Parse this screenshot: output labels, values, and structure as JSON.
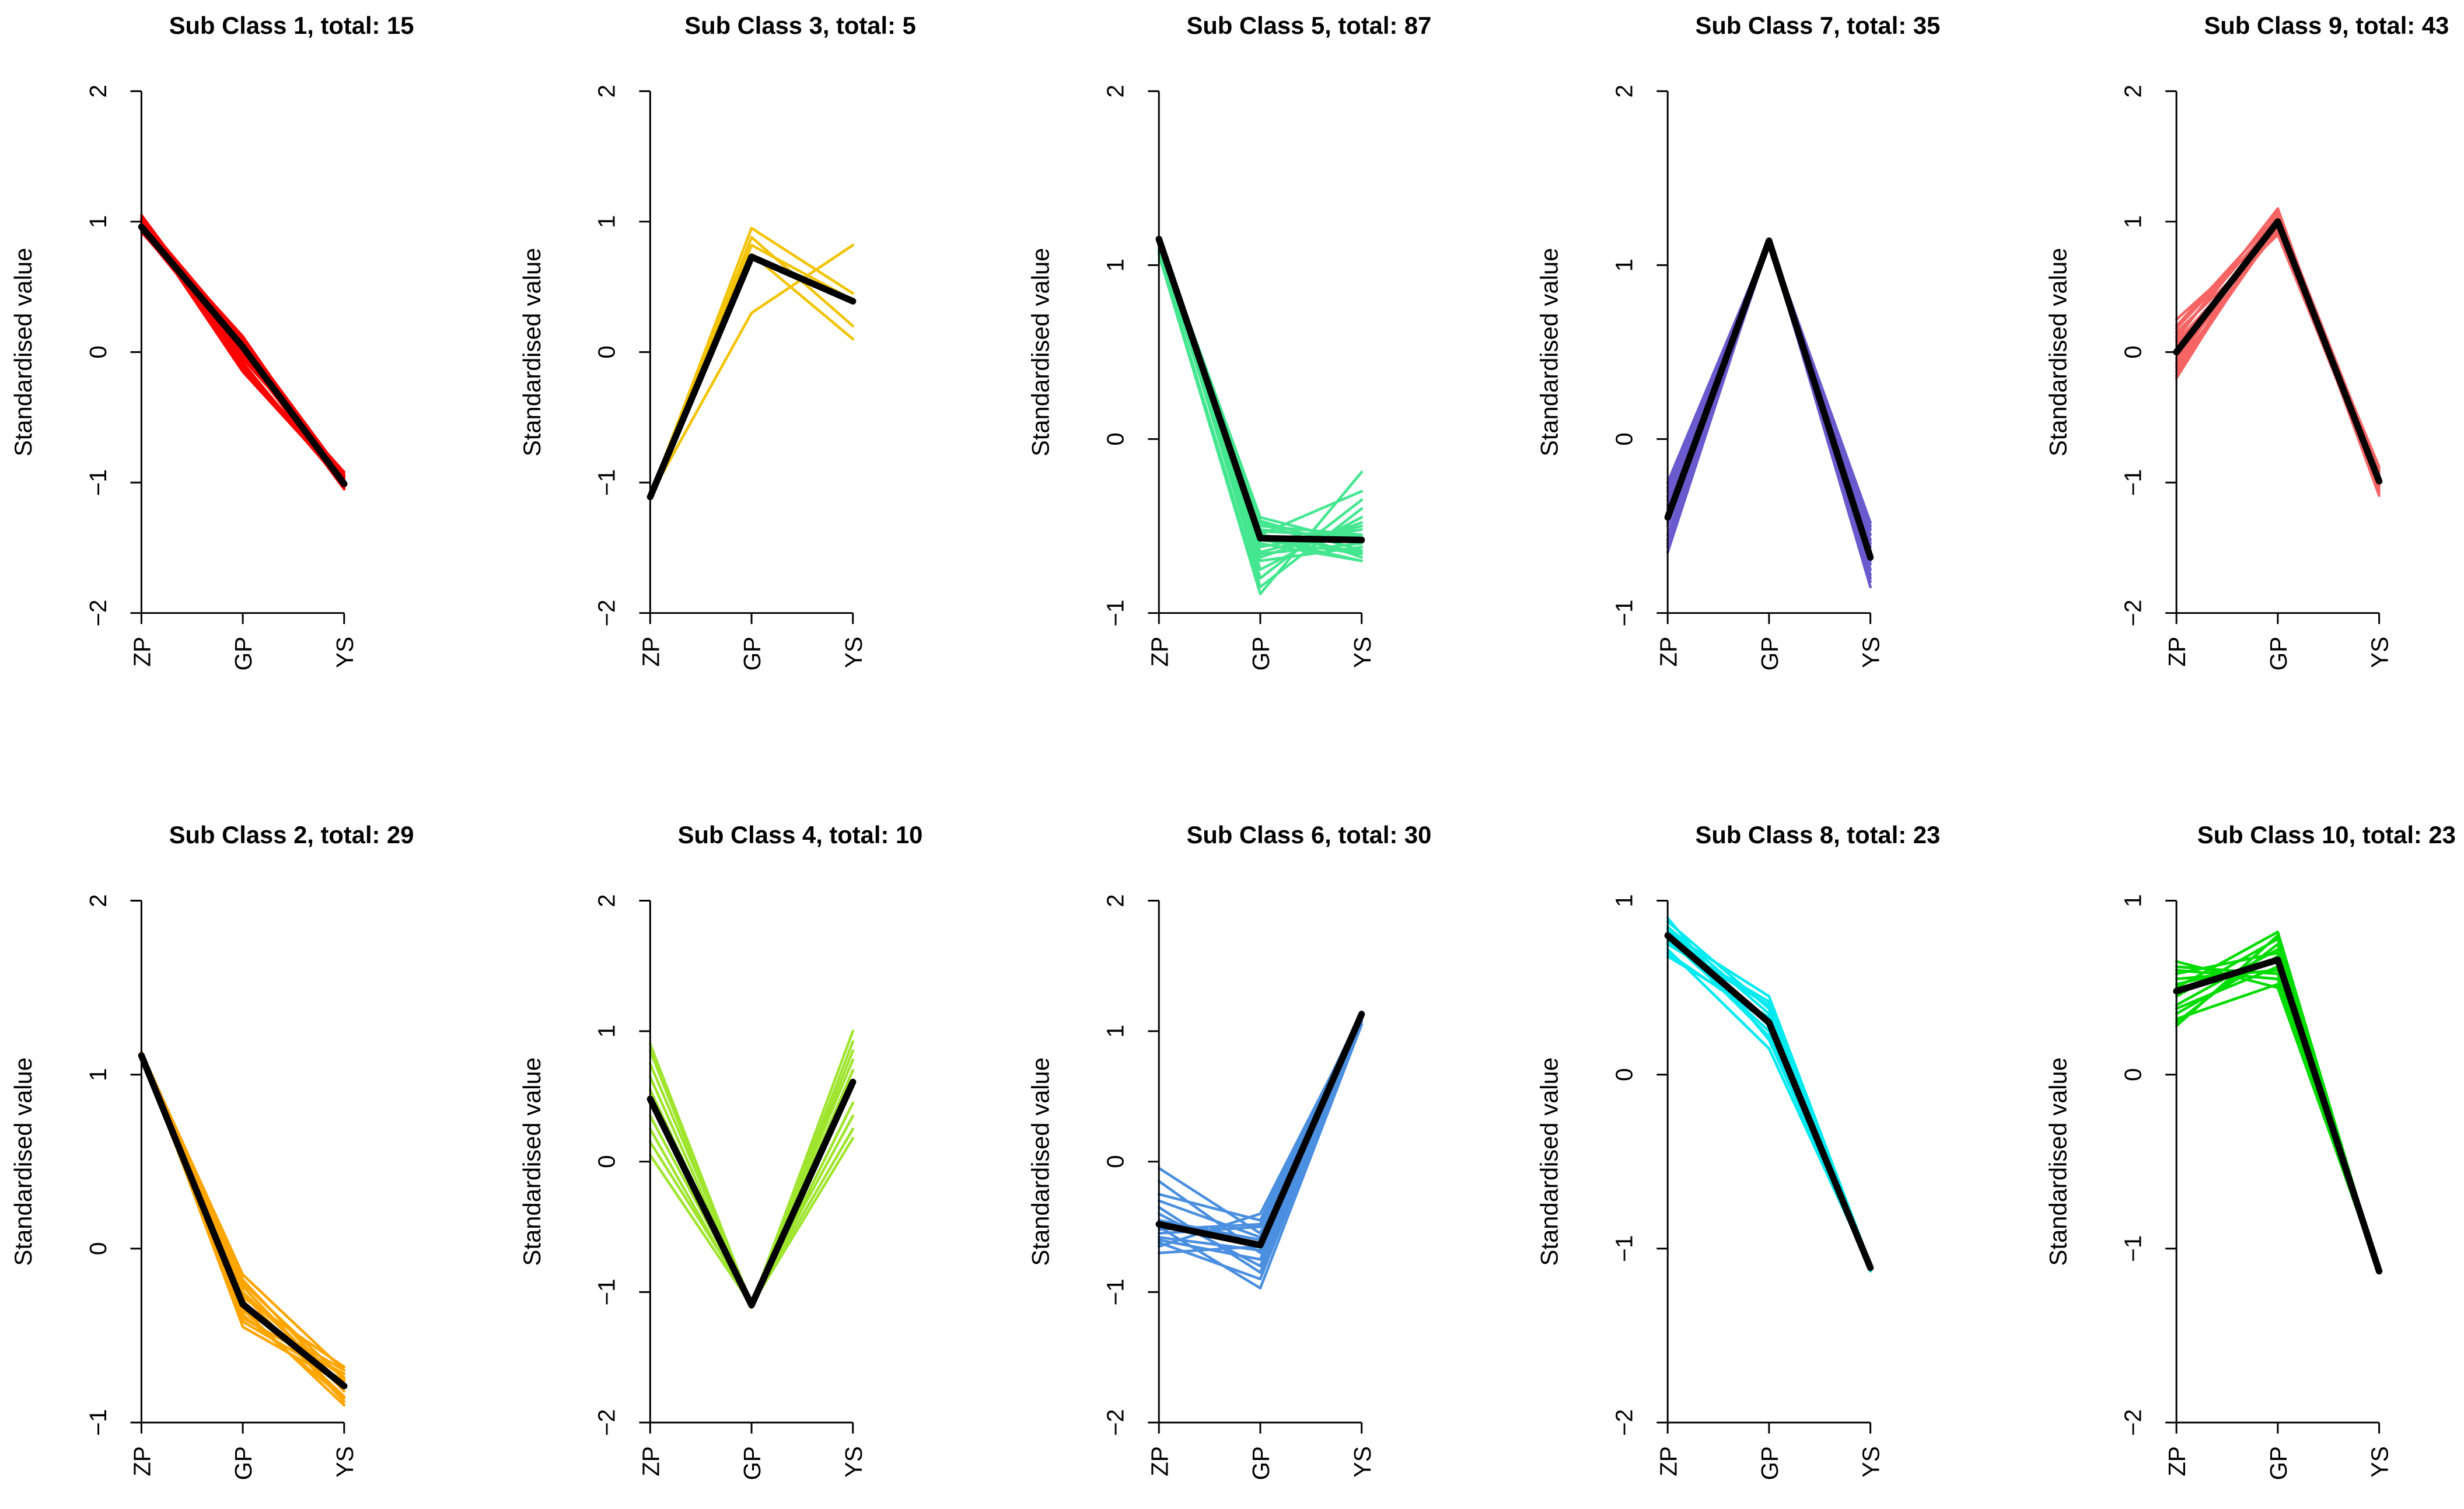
{
  "chart_data": [
    {
      "type": "line",
      "title": "Sub Class 1, total: 15",
      "xlabel": "",
      "ylabel": "Standardised value",
      "categories": [
        "ZP",
        "GP",
        "YS"
      ],
      "ylim": [
        -2,
        2
      ],
      "yticks": [
        -2,
        -1,
        0,
        1,
        2
      ],
      "ytick_labels": [
        "−2",
        "−1",
        "0",
        "1",
        "2"
      ],
      "color": "#ff0000",
      "centroid_color": "#000000",
      "centroid": [
        0.96,
        0.04,
        -1.01
      ],
      "profiles": [
        [
          1.05,
          0.0,
          -1.05
        ],
        [
          1.02,
          0.1,
          -0.95
        ],
        [
          0.98,
          0.12,
          -1.0
        ],
        [
          0.95,
          -0.05,
          -0.92
        ],
        [
          1.0,
          -0.15,
          -1.0
        ],
        [
          0.92,
          0.05,
          -1.02
        ],
        [
          0.97,
          0.08,
          -0.97
        ],
        [
          1.03,
          -0.08,
          -1.03
        ],
        [
          0.94,
          0.02,
          -0.96
        ],
        [
          0.99,
          -0.1,
          -0.99
        ],
        [
          0.96,
          0.06,
          -1.04
        ],
        [
          1.01,
          0.04,
          -0.94
        ],
        [
          0.93,
          -0.02,
          -1.01
        ],
        [
          0.98,
          0.09,
          -0.98
        ],
        [
          1.0,
          -0.12,
          -1.02
        ]
      ]
    },
    {
      "type": "line",
      "title": "Sub Class 3, total: 5",
      "xlabel": "",
      "ylabel": "Standardised value",
      "categories": [
        "ZP",
        "GP",
        "YS"
      ],
      "ylim": [
        -2,
        2
      ],
      "yticks": [
        -2,
        -1,
        0,
        1,
        2
      ],
      "ytick_labels": [
        "−2",
        "−1",
        "0",
        "1",
        "2"
      ],
      "color": "#f3c300",
      "centroid_color": "#000000",
      "centroid": [
        -1.11,
        0.73,
        0.39
      ],
      "profiles": [
        [
          -1.1,
          0.95,
          0.45
        ],
        [
          -1.12,
          0.88,
          0.2
        ],
        [
          -1.08,
          0.82,
          0.4
        ],
        [
          -1.1,
          0.75,
          0.1
        ],
        [
          -1.1,
          0.3,
          0.82
        ]
      ]
    },
    {
      "type": "line",
      "title": "Sub Class 5, total: 87",
      "xlabel": "",
      "ylabel": "Standardised value",
      "categories": [
        "ZP",
        "GP",
        "YS"
      ],
      "ylim": [
        -1,
        2
      ],
      "yticks": [
        -1,
        0,
        1,
        2
      ],
      "ytick_labels": [
        "−1",
        "0",
        "1",
        "2"
      ],
      "color": "#44e690",
      "centroid_color": "#000000",
      "centroid": [
        1.15,
        -0.57,
        -0.58
      ],
      "profiles": [
        [
          1.15,
          -0.45,
          -0.6
        ],
        [
          1.12,
          -0.5,
          -0.55
        ],
        [
          1.1,
          -0.55,
          -0.65
        ],
        [
          1.14,
          -0.6,
          -0.7
        ],
        [
          1.08,
          -0.65,
          -0.5
        ],
        [
          1.13,
          -0.7,
          -0.62
        ],
        [
          1.11,
          -0.75,
          -0.45
        ],
        [
          1.15,
          -0.8,
          -0.35
        ],
        [
          1.06,
          -0.89,
          -0.19
        ],
        [
          1.12,
          -0.48,
          -0.68
        ],
        [
          1.14,
          -0.52,
          -0.58
        ],
        [
          1.09,
          -0.58,
          -0.66
        ],
        [
          1.15,
          -0.62,
          -0.52
        ],
        [
          1.1,
          -0.66,
          -0.6
        ],
        [
          1.13,
          -0.55,
          -0.3
        ],
        [
          1.12,
          -0.47,
          -0.64
        ],
        [
          1.15,
          -0.53,
          -0.56
        ],
        [
          1.11,
          -0.68,
          -0.48
        ],
        [
          1.14,
          -0.57,
          -0.7
        ],
        [
          1.07,
          -0.85,
          -0.4
        ]
      ]
    },
    {
      "type": "line",
      "title": "Sub Class 7, total: 35",
      "xlabel": "",
      "ylabel": "Standardised value",
      "categories": [
        "ZP",
        "GP",
        "YS"
      ],
      "ylim": [
        -1,
        2
      ],
      "yticks": [
        -1,
        0,
        1,
        2
      ],
      "ytick_labels": [
        "−1",
        "0",
        "1",
        "2"
      ],
      "color": "#6a5acd",
      "centroid_color": "#000000",
      "centroid": [
        -0.45,
        1.14,
        -0.68
      ],
      "profiles": [
        [
          -0.25,
          1.14,
          -0.5
        ],
        [
          -0.3,
          1.15,
          -0.55
        ],
        [
          -0.35,
          1.13,
          -0.6
        ],
        [
          -0.4,
          1.14,
          -0.48
        ],
        [
          -0.45,
          1.15,
          -0.65
        ],
        [
          -0.5,
          1.13,
          -0.7
        ],
        [
          -0.55,
          1.14,
          -0.75
        ],
        [
          -0.6,
          1.12,
          -0.8
        ],
        [
          -0.65,
          1.14,
          -0.85
        ],
        [
          -0.28,
          1.15,
          -0.72
        ],
        [
          -0.38,
          1.13,
          -0.82
        ],
        [
          -0.48,
          1.14,
          -0.58
        ],
        [
          -0.58,
          1.15,
          -0.62
        ],
        [
          -0.33,
          1.14,
          -0.68
        ],
        [
          -0.43,
          1.13,
          -0.78
        ],
        [
          -0.62,
          1.15,
          -0.52
        ]
      ]
    },
    {
      "type": "line",
      "title": "Sub Class 9, total: 43",
      "xlabel": "",
      "ylabel": "Standardised value",
      "categories": [
        "ZP",
        "GP",
        "YS"
      ],
      "ylim": [
        -2,
        2
      ],
      "yticks": [
        -2,
        -1,
        0,
        1,
        2
      ],
      "ytick_labels": [
        "−2",
        "−1",
        "0",
        "1",
        "2"
      ],
      "color": "#f66464",
      "centroid_color": "#000000",
      "centroid": [
        0.0,
        1.0,
        -0.99
      ],
      "profiles": [
        [
          0.25,
          0.95,
          -0.9
        ],
        [
          0.2,
          1.05,
          -0.95
        ],
        [
          0.15,
          0.9,
          -1.0
        ],
        [
          0.1,
          1.1,
          -1.05
        ],
        [
          0.05,
          0.98,
          -0.88
        ],
        [
          0.0,
          1.02,
          -1.1
        ],
        [
          -0.05,
          0.93,
          -0.92
        ],
        [
          -0.1,
          1.08,
          -0.98
        ],
        [
          -0.15,
          0.96,
          -1.02
        ],
        [
          -0.2,
          1.04,
          -0.94
        ],
        [
          0.18,
          1.0,
          -1.08
        ],
        [
          -0.18,
          0.99,
          -0.96
        ],
        [
          0.08,
          0.92,
          -1.03
        ],
        [
          -0.08,
          1.06,
          -0.91
        ],
        [
          0.12,
          1.03,
          -0.99
        ],
        [
          -0.12,
          0.97,
          -1.06
        ]
      ]
    },
    {
      "type": "line",
      "title": "Sub Class 2, total: 29",
      "xlabel": "",
      "ylabel": "Standardised value",
      "categories": [
        "ZP",
        "GP",
        "YS"
      ],
      "ylim": [
        -1,
        2
      ],
      "yticks": [
        -1,
        0,
        1,
        2
      ],
      "ytick_labels": [
        "−1",
        "0",
        "1",
        "2"
      ],
      "color": "#ffa500",
      "centroid_color": "#000000",
      "centroid": [
        1.11,
        -0.32,
        -0.79
      ],
      "profiles": [
        [
          1.13,
          -0.15,
          -0.7
        ],
        [
          1.12,
          -0.2,
          -0.75
        ],
        [
          1.11,
          -0.25,
          -0.8
        ],
        [
          1.13,
          -0.3,
          -0.85
        ],
        [
          1.12,
          -0.35,
          -0.9
        ],
        [
          1.1,
          -0.4,
          -0.72
        ],
        [
          1.13,
          -0.45,
          -0.78
        ],
        [
          1.12,
          -0.22,
          -0.82
        ],
        [
          1.11,
          -0.28,
          -0.68
        ],
        [
          1.13,
          -0.33,
          -0.74
        ],
        [
          1.12,
          -0.38,
          -0.86
        ],
        [
          1.11,
          -0.42,
          -0.76
        ],
        [
          1.13,
          -0.18,
          -0.8
        ],
        [
          1.12,
          -0.26,
          -0.88
        ],
        [
          1.1,
          -0.36,
          -0.7
        ]
      ]
    },
    {
      "type": "line",
      "title": "Sub Class 4, total: 10",
      "xlabel": "",
      "ylabel": "Standardised value",
      "categories": [
        "ZP",
        "GP",
        "YS"
      ],
      "ylim": [
        -2,
        2
      ],
      "yticks": [
        -2,
        -1,
        0,
        1,
        2
      ],
      "ytick_labels": [
        "−2",
        "−1",
        "0",
        "1",
        "2"
      ],
      "color": "#9fe52e",
      "centroid_color": "#000000",
      "centroid": [
        0.48,
        -1.1,
        0.61
      ],
      "profiles": [
        [
          0.9,
          -1.1,
          0.6
        ],
        [
          0.85,
          -1.12,
          0.92
        ],
        [
          0.75,
          -1.08,
          0.35
        ],
        [
          0.65,
          -1.1,
          1.0
        ],
        [
          0.55,
          -1.11,
          0.45
        ],
        [
          0.45,
          -1.09,
          0.78
        ],
        [
          0.35,
          -1.1,
          0.18
        ],
        [
          0.25,
          -1.12,
          0.85
        ],
        [
          0.15,
          -1.08,
          0.25
        ],
        [
          0.05,
          -1.1,
          0.7
        ]
      ]
    },
    {
      "type": "line",
      "title": "Sub Class 6, total: 30",
      "xlabel": "",
      "ylabel": "Standardised value",
      "categories": [
        "ZP",
        "GP",
        "YS"
      ],
      "ylim": [
        -2,
        2
      ],
      "yticks": [
        -2,
        -1,
        0,
        1,
        2
      ],
      "ytick_labels": [
        "−2",
        "−1",
        "0",
        "1",
        "2"
      ],
      "color": "#4a8fe0",
      "centroid_color": "#000000",
      "centroid": [
        -0.48,
        -0.64,
        1.13
      ],
      "profiles": [
        [
          -0.05,
          -0.55,
          1.12
        ],
        [
          -0.15,
          -0.7,
          1.1
        ],
        [
          -0.25,
          -0.45,
          1.14
        ],
        [
          -0.35,
          -0.85,
          1.08
        ],
        [
          -0.45,
          -0.6,
          1.13
        ],
        [
          -0.5,
          -0.97,
          1.05
        ],
        [
          -0.55,
          -0.5,
          1.15
        ],
        [
          -0.6,
          -0.75,
          1.11
        ],
        [
          -0.65,
          -0.4,
          1.12
        ],
        [
          -0.7,
          -0.65,
          1.09
        ],
        [
          -0.4,
          -0.8,
          1.13
        ],
        [
          -0.3,
          -0.58,
          1.14
        ],
        [
          -0.58,
          -0.68,
          1.1
        ],
        [
          -0.62,
          -0.9,
          1.07
        ],
        [
          -0.52,
          -0.48,
          1.15
        ]
      ]
    },
    {
      "type": "line",
      "title": "Sub Class 8, total: 23",
      "xlabel": "",
      "ylabel": "Standardised value",
      "categories": [
        "ZP",
        "GP",
        "YS"
      ],
      "ylim": [
        -2,
        1
      ],
      "yticks": [
        -2,
        -1,
        0,
        1
      ],
      "ytick_labels": [
        "−2",
        "−1",
        "0",
        "1"
      ],
      "color": "#00eaf0",
      "centroid_color": "#000000",
      "centroid": [
        0.8,
        0.3,
        -1.11
      ],
      "profiles": [
        [
          0.9,
          0.2,
          -1.1
        ],
        [
          0.85,
          0.35,
          -1.12
        ],
        [
          0.82,
          0.45,
          -1.09
        ],
        [
          0.78,
          0.25,
          -1.13
        ],
        [
          0.75,
          0.4,
          -1.1
        ],
        [
          0.72,
          0.15,
          -1.11
        ],
        [
          0.7,
          0.3,
          -1.08
        ],
        [
          0.88,
          0.38,
          -1.12
        ],
        [
          0.8,
          0.22,
          -1.1
        ],
        [
          0.76,
          0.42,
          -1.11
        ],
        [
          0.84,
          0.28,
          -1.09
        ],
        [
          0.68,
          0.33,
          -1.12
        ]
      ]
    },
    {
      "type": "line",
      "title": "Sub Class 10, total: 23",
      "xlabel": "",
      "ylabel": "Standardised value",
      "categories": [
        "ZP",
        "GP",
        "YS"
      ],
      "ylim": [
        -2,
        1
      ],
      "yticks": [
        -2,
        -1,
        0,
        1
      ],
      "ytick_labels": [
        "−2",
        "−1",
        "0",
        "1"
      ],
      "color": "#00dc00",
      "centroid_color": "#000000",
      "centroid": [
        0.48,
        0.66,
        -1.13
      ],
      "profiles": [
        [
          0.65,
          0.5,
          -1.13
        ],
        [
          0.6,
          0.55,
          -1.12
        ],
        [
          0.55,
          0.6,
          -1.14
        ],
        [
          0.5,
          0.82,
          -1.13
        ],
        [
          0.45,
          0.78,
          -1.12
        ],
        [
          0.4,
          0.72,
          -1.14
        ],
        [
          0.35,
          0.68,
          -1.13
        ],
        [
          0.3,
          0.75,
          -1.12
        ],
        [
          0.28,
          0.8,
          -1.13
        ],
        [
          0.62,
          0.58,
          -1.14
        ],
        [
          0.52,
          0.65,
          -1.13
        ],
        [
          0.38,
          0.62,
          -1.12
        ],
        [
          0.58,
          0.7,
          -1.13
        ],
        [
          0.32,
          0.52,
          -1.14
        ]
      ]
    }
  ]
}
